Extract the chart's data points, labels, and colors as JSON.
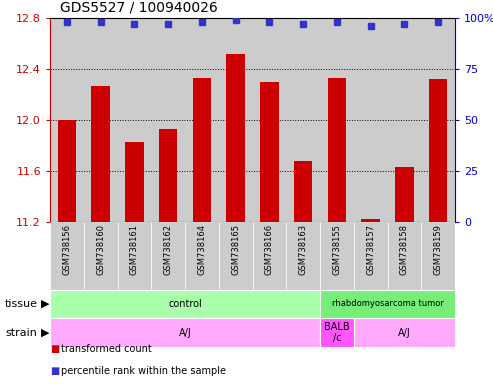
{
  "title": "GDS5527 / 100940026",
  "samples": [
    "GSM738156",
    "GSM738160",
    "GSM738161",
    "GSM738162",
    "GSM738164",
    "GSM738165",
    "GSM738166",
    "GSM738163",
    "GSM738155",
    "GSM738157",
    "GSM738158",
    "GSM738159"
  ],
  "bar_values": [
    12.0,
    12.27,
    11.83,
    11.93,
    12.33,
    12.52,
    12.3,
    11.68,
    12.33,
    11.22,
    11.63,
    12.32
  ],
  "percentile_values": [
    98,
    98,
    97,
    97,
    98,
    99,
    98,
    97,
    98,
    96,
    97,
    98
  ],
  "ylim_left": [
    11.2,
    12.8
  ],
  "ylim_right": [
    0,
    100
  ],
  "yticks_left": [
    11.2,
    11.6,
    12.0,
    12.4,
    12.8
  ],
  "yticks_right": [
    0,
    25,
    50,
    75,
    100
  ],
  "bar_color": "#cc0000",
  "dot_color": "#3333cc",
  "tissue_groups": [
    {
      "label": "control",
      "start": 0,
      "end": 8,
      "color": "#aaffaa"
    },
    {
      "label": "rhabdomyosarcoma tumor",
      "start": 8,
      "end": 12,
      "color": "#77ee77"
    }
  ],
  "strain_groups": [
    {
      "label": "A/J",
      "start": 0,
      "end": 8,
      "color": "#ffaaff"
    },
    {
      "label": "BALB\n/c",
      "start": 8,
      "end": 9,
      "color": "#ff55ff"
    },
    {
      "label": "A/J",
      "start": 9,
      "end": 12,
      "color": "#ffaaff"
    }
  ],
  "tissue_label": "tissue",
  "strain_label": "strain",
  "bg_color": "#cccccc",
  "left_color": "#cc0000",
  "right_color": "#0000cc",
  "title_fontsize": 10
}
